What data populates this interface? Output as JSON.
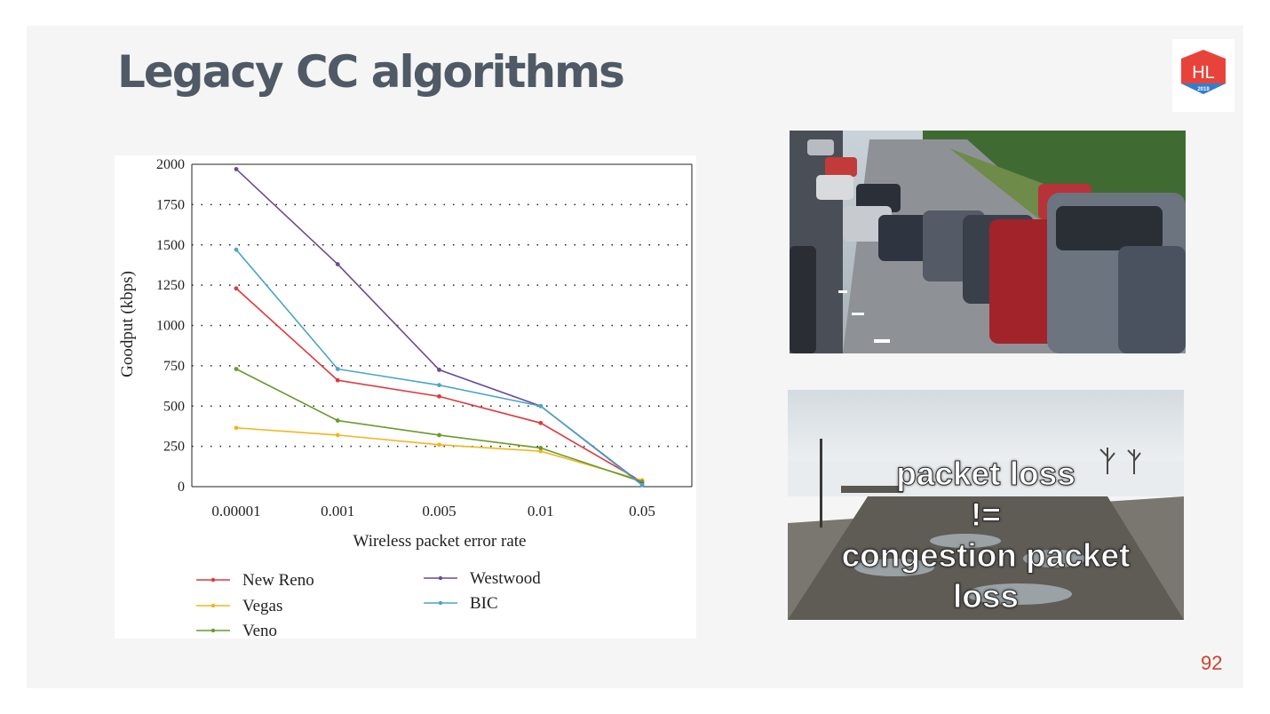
{
  "slide": {
    "title": "Legacy CC algorithms",
    "page_number": "92",
    "overlay_lines": [
      "packet loss",
      "!=",
      "congestion packet",
      "loss"
    ],
    "logo_text": "HL",
    "logo_year": "2019",
    "logo_color": "#e8433a",
    "logo_color2": "#2f7fd1"
  },
  "chart_data": {
    "type": "line",
    "xlabel": "Wireless packet error rate",
    "ylabel": "Goodput (kbps)",
    "categories": [
      "0.00001",
      "0.001",
      "0.005",
      "0.01",
      "0.05"
    ],
    "ylim": [
      0,
      2000
    ],
    "yticks": [
      "0",
      "250",
      "500",
      "750",
      "1000",
      "1250",
      "1500",
      "1750",
      "2000"
    ],
    "grid": "dotted horizontal",
    "legend_position": "bottom",
    "series": [
      {
        "name": "New Reno",
        "color": "#e0383c",
        "values": [
          1230,
          660,
          560,
          395,
          30
        ]
      },
      {
        "name": "Vegas",
        "color": "#f2b51c",
        "values": [
          365,
          320,
          260,
          220,
          40
        ]
      },
      {
        "name": "Veno",
        "color": "#6a9a2e",
        "values": [
          730,
          410,
          320,
          240,
          30
        ]
      },
      {
        "name": "Westwood",
        "color": "#6a4a9c",
        "values": [
          1970,
          1380,
          725,
          500,
          15
        ]
      },
      {
        "name": "BIC",
        "color": "#4aa6c4",
        "values": [
          1470,
          730,
          630,
          500,
          10
        ]
      }
    ]
  }
}
